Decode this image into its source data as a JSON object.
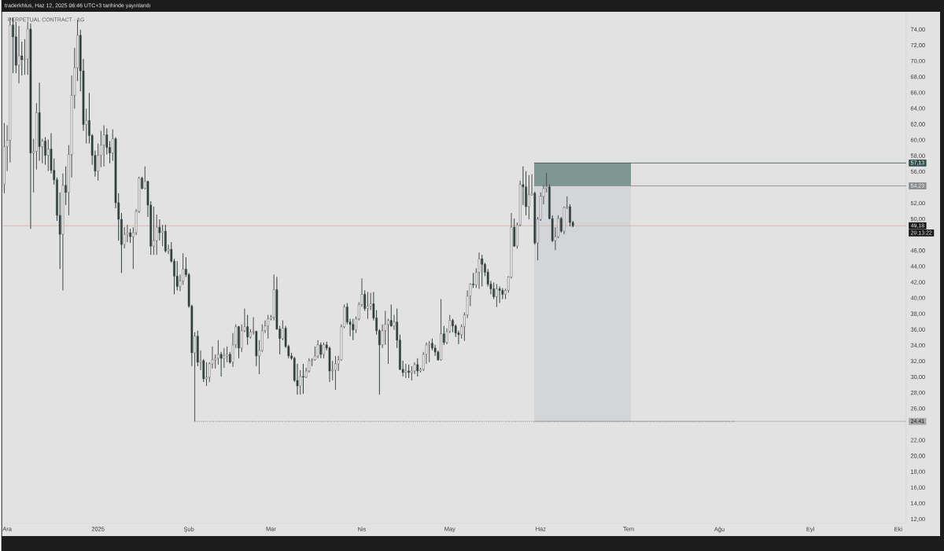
{
  "chart_data": {
    "type": "candlestick",
    "title": "PERPETUAL CONTRACT · 1G",
    "annotations": [
      "traderkhlus, Haz 12, 2025 06:46 UTC+3 tarihinde yayınlandı",
      "20:13:22"
    ],
    "x": [
      "2024-11-30",
      "2024-12-01",
      "2024-12-02",
      "2024-12-03",
      "2024-12-04",
      "2024-12-05",
      "2024-12-06",
      "2024-12-07",
      "2024-12-08",
      "2024-12-09",
      "2024-12-10",
      "2024-12-11",
      "2024-12-12",
      "2024-12-13",
      "2024-12-14",
      "2024-12-15",
      "2024-12-16",
      "2024-12-17",
      "2024-12-18",
      "2024-12-19",
      "2024-12-20",
      "2024-12-21",
      "2024-12-22",
      "2024-12-23",
      "2024-12-24",
      "2024-12-25",
      "2024-12-26",
      "2024-12-27",
      "2024-12-28",
      "2024-12-29",
      "2024-12-30",
      "2024-12-31",
      "2025-01-01",
      "2025-01-02",
      "2025-01-03",
      "2025-01-04",
      "2025-01-05",
      "2025-01-06",
      "2025-01-07",
      "2025-01-08",
      "2025-01-09",
      "2025-01-10",
      "2025-01-11",
      "2025-01-12",
      "2025-01-13",
      "2025-01-14",
      "2025-01-15",
      "2025-01-16",
      "2025-01-17",
      "2025-01-18",
      "2025-01-19",
      "2025-01-20",
      "2025-01-21",
      "2025-01-22",
      "2025-01-23",
      "2025-01-24",
      "2025-01-25",
      "2025-01-26",
      "2025-01-27",
      "2025-01-28",
      "2025-01-29",
      "2025-01-30",
      "2025-01-31",
      "2025-02-01",
      "2025-02-02",
      "2025-02-03",
      "2025-02-04",
      "2025-02-05",
      "2025-02-06",
      "2025-02-07",
      "2025-02-08",
      "2025-02-09",
      "2025-02-10",
      "2025-02-11",
      "2025-02-12",
      "2025-02-13",
      "2025-02-14",
      "2025-02-15",
      "2025-02-16",
      "2025-02-17",
      "2025-02-18",
      "2025-02-19",
      "2025-02-20",
      "2025-02-21",
      "2025-02-22",
      "2025-02-23",
      "2025-02-24",
      "2025-02-25",
      "2025-02-26",
      "2025-02-27",
      "2025-02-28",
      "2025-03-01",
      "2025-03-02",
      "2025-03-03",
      "2025-03-04",
      "2025-03-05",
      "2025-03-06",
      "2025-03-07",
      "2025-03-08",
      "2025-03-09",
      "2025-03-10",
      "2025-03-11",
      "2025-03-12",
      "2025-03-13",
      "2025-03-14",
      "2025-03-15",
      "2025-03-16",
      "2025-03-17",
      "2025-03-18",
      "2025-03-19",
      "2025-03-20",
      "2025-03-21",
      "2025-03-22",
      "2025-03-23",
      "2025-03-24",
      "2025-03-25",
      "2025-03-26",
      "2025-03-27",
      "2025-03-28",
      "2025-03-29",
      "2025-03-30",
      "2025-03-31",
      "2025-04-01",
      "2025-04-02",
      "2025-04-03",
      "2025-04-04",
      "2025-04-05",
      "2025-04-06",
      "2025-04-07",
      "2025-04-08",
      "2025-04-09",
      "2025-04-10",
      "2025-04-11",
      "2025-04-12",
      "2025-04-13",
      "2025-04-14",
      "2025-04-15",
      "2025-04-16",
      "2025-04-17",
      "2025-04-18",
      "2025-04-19",
      "2025-04-20",
      "2025-04-21",
      "2025-04-22",
      "2025-04-23",
      "2025-04-24",
      "2025-04-25",
      "2025-04-26",
      "2025-04-27",
      "2025-04-28",
      "2025-04-29",
      "2025-04-30",
      "2025-05-01",
      "2025-05-02",
      "2025-05-03",
      "2025-05-04",
      "2025-05-05",
      "2025-05-06",
      "2025-05-07",
      "2025-05-08",
      "2025-05-09",
      "2025-05-10",
      "2025-05-11",
      "2025-05-12",
      "2025-05-13",
      "2025-05-14",
      "2025-05-15",
      "2025-05-16",
      "2025-05-17",
      "2025-05-18",
      "2025-05-19",
      "2025-05-20",
      "2025-05-21",
      "2025-05-22",
      "2025-05-23",
      "2025-05-24",
      "2025-05-25",
      "2025-05-26",
      "2025-05-27",
      "2025-05-28",
      "2025-05-29",
      "2025-05-30",
      "2025-05-31",
      "2025-06-01",
      "2025-06-02",
      "2025-06-03",
      "2025-06-04",
      "2025-06-05",
      "2025-06-06",
      "2025-06-07",
      "2025-06-08",
      "2025-06-09",
      "2025-06-10",
      "2025-06-11",
      "2025-06-12"
    ],
    "ohlc": [
      [
        54.4,
        62.2,
        53.3,
        59.2
      ],
      [
        59.2,
        61.9,
        56.1,
        60.0
      ],
      [
        60.0,
        75.5,
        57.2,
        74.6
      ],
      [
        74.6,
        75.5,
        68.5,
        73.1
      ],
      [
        73.1,
        75.0,
        68.5,
        69.5
      ],
      [
        69.5,
        74.5,
        67.2,
        70.7
      ],
      [
        70.7,
        72.5,
        68.2,
        70.2
      ],
      [
        70.2,
        72.8,
        68.3,
        70.3
      ],
      [
        70.3,
        75.0,
        68.3,
        74.1
      ],
      [
        74.1,
        74.8,
        48.8,
        58.4
      ],
      [
        58.4,
        60.2,
        53.4,
        58.6
      ],
      [
        58.6,
        64.7,
        56.3,
        63.5
      ],
      [
        63.5,
        67.3,
        57.4,
        59.2
      ],
      [
        59.2,
        60.2,
        57.1,
        59.9
      ],
      [
        59.9,
        60.4,
        56.9,
        58.1
      ],
      [
        58.1,
        60.1,
        56.1,
        58.9
      ],
      [
        58.9,
        60.9,
        55.8,
        56.2
      ],
      [
        56.2,
        57.7,
        54.4,
        55.0
      ],
      [
        55.0,
        55.3,
        49.8,
        50.5
      ],
      [
        50.5,
        53.4,
        43.7,
        48.1
      ],
      [
        48.1,
        55.8,
        41.0,
        54.3
      ],
      [
        54.3,
        56.7,
        51.8,
        53.4
      ],
      [
        53.4,
        59.4,
        50.5,
        58.2
      ],
      [
        58.2,
        68.2,
        55.3,
        65.7
      ],
      [
        65.7,
        71.7,
        64.0,
        69.2
      ],
      [
        69.2,
        75.3,
        67.5,
        73.3
      ],
      [
        73.3,
        74.0,
        66.2,
        68.8
      ],
      [
        68.8,
        70.3,
        61.2,
        62.0
      ],
      [
        62.0,
        64.0,
        59.6,
        62.5
      ],
      [
        62.5,
        66.0,
        59.6,
        60.6
      ],
      [
        60.6,
        60.8,
        56.9,
        58.1
      ],
      [
        58.1,
        58.7,
        55.4,
        56.1
      ],
      [
        56.1,
        59.6,
        54.9,
        58.1
      ],
      [
        58.1,
        61.2,
        56.6,
        59.4
      ],
      [
        59.4,
        61.9,
        56.7,
        60.7
      ],
      [
        60.7,
        61.5,
        58.2,
        59.1
      ],
      [
        59.1,
        59.9,
        57.1,
        58.4
      ],
      [
        58.4,
        61.4,
        57.4,
        60.2
      ],
      [
        60.2,
        60.4,
        51.4,
        52.1
      ],
      [
        52.1,
        53.3,
        47.3,
        50.0
      ],
      [
        50.0,
        50.8,
        43.2,
        46.8
      ],
      [
        46.8,
        49.0,
        46.3,
        48.1
      ],
      [
        48.1,
        49.3,
        47.1,
        48.3
      ],
      [
        48.3,
        48.8,
        47.0,
        47.8
      ],
      [
        47.8,
        49.0,
        43.7,
        48.3
      ],
      [
        48.3,
        51.3,
        48.0,
        51.0
      ],
      [
        51.0,
        55.4,
        50.8,
        55.2
      ],
      [
        55.2,
        55.4,
        53.8,
        53.9
      ],
      [
        53.9,
        56.7,
        53.8,
        54.8
      ],
      [
        54.8,
        54.9,
        50.3,
        51.8
      ],
      [
        51.8,
        52.3,
        45.5,
        46.6
      ],
      [
        46.6,
        51.6,
        45.5,
        47.3
      ],
      [
        47.3,
        50.6,
        45.5,
        49.0
      ],
      [
        49.0,
        50.0,
        47.3,
        48.3
      ],
      [
        48.3,
        49.3,
        46.6,
        48.5
      ],
      [
        48.5,
        49.3,
        45.8,
        46.0
      ],
      [
        46.0,
        46.8,
        45.6,
        46.2
      ],
      [
        46.2,
        47.1,
        44.5,
        44.7
      ],
      [
        44.7,
        45.0,
        40.5,
        42.8
      ],
      [
        42.8,
        44.7,
        41.0,
        41.5
      ],
      [
        41.5,
        43.0,
        40.9,
        42.2
      ],
      [
        42.2,
        45.7,
        41.7,
        43.7
      ],
      [
        43.7,
        45.2,
        42.7,
        43.0
      ],
      [
        43.0,
        43.2,
        38.8,
        39.0
      ],
      [
        39.0,
        39.2,
        31.4,
        33.1
      ],
      [
        33.1,
        35.7,
        24.41,
        35.2
      ],
      [
        35.2,
        35.9,
        31.4,
        31.9
      ],
      [
        31.9,
        33.4,
        30.9,
        32.1
      ],
      [
        32.1,
        32.3,
        29.4,
        29.8
      ],
      [
        29.8,
        31.9,
        28.9,
        30.0
      ],
      [
        30.0,
        31.9,
        29.4,
        31.7
      ],
      [
        31.7,
        33.9,
        31.1,
        32.2
      ],
      [
        32.2,
        32.9,
        31.1,
        32.4
      ],
      [
        32.4,
        34.7,
        31.6,
        32.9
      ],
      [
        32.9,
        33.2,
        30.1,
        32.4
      ],
      [
        32.4,
        33.7,
        31.2,
        32.7
      ],
      [
        32.7,
        33.9,
        31.9,
        32.9
      ],
      [
        32.9,
        33.2,
        31.7,
        31.9
      ],
      [
        31.9,
        35.6,
        31.3,
        34.1
      ],
      [
        34.1,
        36.7,
        33.7,
        36.4
      ],
      [
        36.4,
        36.5,
        32.4,
        33.7
      ],
      [
        33.7,
        36.7,
        33.2,
        35.9
      ],
      [
        35.9,
        38.7,
        35.7,
        36.4
      ],
      [
        36.4,
        37.9,
        34.1,
        35.1
      ],
      [
        35.1,
        36.1,
        34.9,
        35.7
      ],
      [
        35.7,
        37.6,
        35.4,
        35.8
      ],
      [
        35.8,
        35.9,
        31.4,
        32.7
      ],
      [
        32.7,
        34.7,
        30.4,
        33.4
      ],
      [
        33.4,
        36.7,
        33.2,
        35.9
      ],
      [
        35.9,
        37.2,
        35.6,
        36.5
      ],
      [
        36.5,
        37.9,
        34.9,
        37.4
      ],
      [
        37.4,
        37.9,
        37.2,
        37.6
      ],
      [
        37.6,
        43.0,
        37.2,
        41.1
      ],
      [
        41.1,
        42.7,
        36.0,
        36.1
      ],
      [
        36.1,
        36.5,
        32.9,
        34.9
      ],
      [
        34.9,
        37.2,
        34.7,
        36.2
      ],
      [
        36.2,
        36.5,
        33.7,
        33.9
      ],
      [
        33.9,
        34.1,
        32.4,
        32.7
      ],
      [
        32.7,
        33.1,
        32.2,
        32.4
      ],
      [
        32.4,
        32.6,
        29.4,
        29.6
      ],
      [
        29.6,
        31.7,
        27.8,
        28.9
      ],
      [
        28.9,
        30.9,
        27.8,
        30.1
      ],
      [
        30.1,
        31.7,
        27.9,
        30.0
      ],
      [
        30.0,
        31.2,
        29.9,
        30.8
      ],
      [
        30.8,
        32.4,
        30.6,
        32.1
      ],
      [
        32.1,
        32.4,
        31.4,
        32.2
      ],
      [
        32.2,
        33.9,
        32.1,
        32.7
      ],
      [
        32.7,
        34.7,
        32.4,
        34.1
      ],
      [
        34.1,
        34.4,
        32.4,
        32.9
      ],
      [
        32.9,
        34.4,
        32.4,
        34.1
      ],
      [
        34.1,
        34.5,
        33.4,
        33.7
      ],
      [
        33.7,
        33.9,
        29.4,
        30.8
      ],
      [
        30.8,
        32.1,
        29.6,
        30.9
      ],
      [
        30.9,
        32.7,
        28.4,
        31.7
      ],
      [
        31.7,
        32.7,
        30.8,
        32.2
      ],
      [
        32.2,
        36.7,
        32.1,
        36.4
      ],
      [
        36.4,
        39.2,
        36.2,
        38.9
      ],
      [
        38.9,
        39.4,
        36.7,
        37.0
      ],
      [
        37.0,
        37.4,
        35.2,
        36.7
      ],
      [
        36.7,
        37.4,
        34.7,
        36.0
      ],
      [
        36.0,
        37.7,
        35.6,
        37.4
      ],
      [
        37.4,
        39.5,
        37.2,
        39.2
      ],
      [
        39.2,
        42.5,
        38.9,
        40.5
      ],
      [
        40.5,
        41.0,
        38.4,
        38.7
      ],
      [
        38.7,
        40.8,
        37.4,
        39.0
      ],
      [
        39.0,
        40.7,
        38.5,
        39.3
      ],
      [
        39.3,
        40.8,
        37.2,
        37.5
      ],
      [
        37.5,
        38.5,
        35.4,
        35.9
      ],
      [
        35.9,
        36.1,
        27.8,
        34.1
      ],
      [
        34.1,
        36.7,
        33.7,
        35.9
      ],
      [
        35.9,
        38.4,
        34.1,
        36.7
      ],
      [
        36.7,
        37.4,
        31.7,
        37.2
      ],
      [
        37.2,
        39.2,
        36.4,
        36.5
      ],
      [
        36.5,
        37.9,
        36.0,
        37.0
      ],
      [
        37.0,
        38.7,
        33.7,
        34.7
      ],
      [
        34.7,
        35.4,
        30.9,
        31.0
      ],
      [
        31.0,
        32.1,
        30.1,
        30.6
      ],
      [
        30.6,
        31.7,
        29.9,
        30.8
      ],
      [
        30.8,
        31.6,
        29.9,
        30.6
      ],
      [
        30.6,
        31.4,
        29.6,
        30.8
      ],
      [
        30.8,
        31.9,
        30.4,
        31.6
      ],
      [
        31.6,
        32.4,
        30.1,
        30.8
      ],
      [
        30.8,
        31.2,
        30.6,
        31.0
      ],
      [
        31.0,
        33.2,
        30.8,
        32.9
      ],
      [
        32.9,
        34.4,
        31.7,
        34.1
      ],
      [
        34.1,
        34.6,
        31.9,
        34.3
      ],
      [
        34.3,
        34.9,
        33.4,
        33.7
      ],
      [
        33.7,
        34.1,
        32.7,
        33.2
      ],
      [
        33.2,
        33.4,
        32.1,
        32.2
      ],
      [
        32.2,
        39.9,
        32.1,
        35.5
      ],
      [
        35.5,
        36.5,
        34.1,
        34.4
      ],
      [
        34.4,
        36.2,
        34.2,
        35.8
      ],
      [
        35.8,
        37.9,
        35.6,
        37.2
      ],
      [
        37.2,
        37.4,
        35.7,
        36.5
      ],
      [
        36.5,
        36.7,
        35.1,
        35.6
      ],
      [
        35.6,
        35.9,
        34.2,
        35.4
      ],
      [
        35.4,
        36.7,
        34.9,
        36.4
      ],
      [
        36.4,
        38.2,
        34.6,
        37.9
      ],
      [
        37.9,
        41.0,
        37.5,
        40.3
      ],
      [
        40.3,
        41.9,
        39.0,
        41.8
      ],
      [
        41.8,
        43.2,
        41.3,
        41.7
      ],
      [
        41.7,
        43.8,
        41.3,
        43.3
      ],
      [
        43.3,
        45.8,
        41.2,
        45.0
      ],
      [
        45.0,
        45.5,
        41.5,
        44.3
      ],
      [
        44.3,
        44.5,
        42.8,
        43.3
      ],
      [
        43.3,
        43.7,
        41.5,
        41.8
      ],
      [
        41.8,
        42.2,
        40.5,
        41.2
      ],
      [
        41.2,
        42.0,
        39.9,
        40.2
      ],
      [
        40.2,
        41.8,
        38.9,
        41.2
      ],
      [
        41.2,
        41.5,
        39.4,
        41.0
      ],
      [
        41.0,
        41.3,
        39.9,
        40.5
      ],
      [
        40.5,
        41.2,
        39.9,
        41.0
      ],
      [
        41.0,
        42.8,
        40.7,
        42.7
      ],
      [
        42.7,
        50.8,
        42.5,
        49.0
      ],
      [
        49.0,
        50.1,
        46.5,
        46.6
      ],
      [
        46.6,
        49.6,
        46.3,
        49.3
      ],
      [
        49.3,
        54.9,
        49.1,
        54.4
      ],
      [
        54.4,
        56.7,
        51.8,
        54.1
      ],
      [
        54.1,
        56.1,
        50.5,
        51.6
      ],
      [
        51.6,
        55.6,
        50.0,
        53.1
      ],
      [
        53.1,
        55.7,
        53.0,
        53.3
      ],
      [
        53.3,
        53.5,
        46.8,
        47.0
      ],
      [
        47.0,
        50.3,
        44.8,
        50.0
      ],
      [
        50.0,
        53.4,
        49.8,
        52.9
      ],
      [
        52.9,
        54.3,
        51.9,
        53.9
      ],
      [
        53.9,
        55.9,
        53.4,
        54.1
      ],
      [
        54.1,
        54.4,
        50.0,
        50.1
      ],
      [
        50.1,
        50.5,
        47.1,
        47.3
      ],
      [
        47.3,
        49.0,
        46.1,
        47.8
      ],
      [
        47.8,
        50.5,
        47.6,
        50.1
      ],
      [
        50.1,
        50.3,
        48.3,
        48.5
      ],
      [
        48.5,
        51.6,
        48.1,
        51.5
      ],
      [
        51.5,
        52.9,
        51.3,
        51.6
      ],
      [
        51.6,
        51.9,
        49.1,
        49.6
      ],
      [
        49.6,
        49.8,
        49.0,
        49.18
      ]
    ],
    "series": [
      {
        "type": "bar",
        "x": [
          "2025-06-15T07:00"
        ],
        "base": [
          54.23
        ],
        "values": [
          2.9
        ],
        "color": "#7f9693"
      },
      {
        "type": "bar",
        "x": [
          "2025-06-15T07:00"
        ],
        "base": [
          24.41
        ],
        "values": [
          29.82
        ],
        "color": "#d4d5d8"
      },
      {
        "type": "line",
        "x": [
          "2025-02-03",
          "2025-08-06"
        ],
        "values": [
          24.41,
          24.41
        ],
        "color": "#5f6263",
        "line_style": "dotted"
      }
    ],
    "ref_lines": [
      {
        "axis": "y",
        "value": 57.13,
        "label": "57,13",
        "color": "#35534e"
      },
      {
        "axis": "y",
        "value": 54.23,
        "label": "54,23",
        "color": "#878c8e"
      },
      {
        "axis": "y",
        "value": 49.18,
        "label": "49,18",
        "color": "#e4a199",
        "line_style": "solid"
      },
      {
        "axis": "y",
        "value": 24.41,
        "label": "24,41",
        "color": "#a8a9aa"
      }
    ],
    "xlim": [
      "2024-11-29T12:00",
      "2025-10-03T17:00"
    ],
    "ylim": [
      11.5,
      76.3
    ],
    "xticks": [
      {
        "value": "2024-12-01",
        "label": "Ara"
      },
      {
        "value": "2025-01-01",
        "label": "2025"
      },
      {
        "value": "2025-02-01",
        "label": "Şub"
      },
      {
        "value": "2025-03-01",
        "label": "Mar"
      },
      {
        "value": "2025-04-01",
        "label": "Nis"
      },
      {
        "value": "2025-05-01",
        "label": "May"
      },
      {
        "value": "2025-06-01",
        "label": "Haz"
      },
      {
        "value": "2025-07-01",
        "label": "Tem"
      },
      {
        "value": "2025-08-01",
        "label": "Ağu"
      },
      {
        "value": "2025-09-01",
        "label": "Eyl"
      },
      {
        "value": "2025-10-01",
        "label": "Eki"
      }
    ],
    "yticks": [
      {
        "value": 12,
        "label": "12,00"
      },
      {
        "value": 14,
        "label": "14,00"
      },
      {
        "value": 16,
        "label": "16,00"
      },
      {
        "value": 18,
        "label": "18,00"
      },
      {
        "value": 20,
        "label": "20,00"
      },
      {
        "value": 22,
        "label": "22,00"
      },
      {
        "value": 26,
        "label": "26,00"
      },
      {
        "value": 28,
        "label": "28,00"
      },
      {
        "value": 30,
        "label": "30,00"
      },
      {
        "value": 32,
        "label": "32,00"
      },
      {
        "value": 34,
        "label": "34,00"
      },
      {
        "value": 36,
        "label": "36,00"
      },
      {
        "value": 38,
        "label": "38,00"
      },
      {
        "value": 40,
        "label": "40,00"
      },
      {
        "value": 42,
        "label": "42,00"
      },
      {
        "value": 44,
        "label": "44,00"
      },
      {
        "value": 46,
        "label": "46,00"
      },
      {
        "value": 50,
        "label": "50,00"
      },
      {
        "value": 52,
        "label": "52,00"
      },
      {
        "value": 56,
        "label": "56,00"
      },
      {
        "value": 58,
        "label": "58,00"
      },
      {
        "value": 60,
        "label": "60,00"
      },
      {
        "value": 62,
        "label": "62,00"
      },
      {
        "value": 64,
        "label": "64,00"
      },
      {
        "value": 66,
        "label": "66,00"
      },
      {
        "value": 68,
        "label": "68,00"
      },
      {
        "value": 70,
        "label": "70,00"
      },
      {
        "value": 72,
        "label": "72,00"
      },
      {
        "value": 74,
        "label": "74,00"
      }
    ]
  }
}
